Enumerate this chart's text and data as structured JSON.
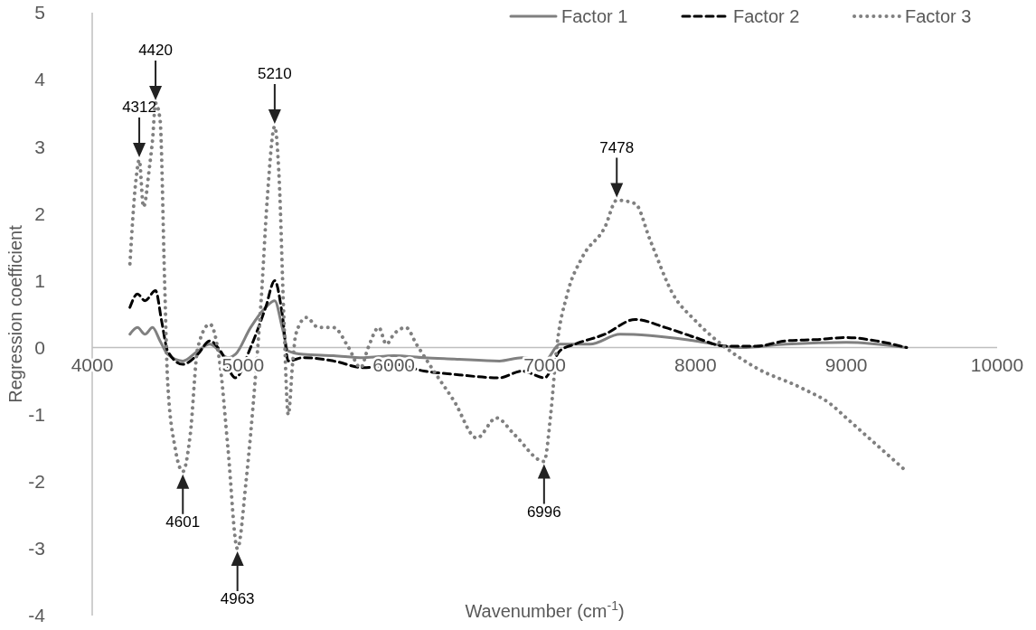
{
  "chart_data": {
    "type": "line",
    "xlabel": "Wavenumber (cm$^{-1}$)",
    "ylabel": "Regression coefficient",
    "xlim": [
      4000,
      10000
    ],
    "ylim": [
      -4,
      5
    ],
    "xticks": [
      4000,
      5000,
      6000,
      7000,
      8000,
      9000,
      10000
    ],
    "yticks": [
      -4,
      -3,
      -2,
      -1,
      0,
      1,
      2,
      3,
      4,
      5
    ],
    "grid": false,
    "legend": "top",
    "marker": "none",
    "series": [
      {
        "name": "Factor 1",
        "color": "#808080",
        "line_style": "solid",
        "x": [
          4250,
          4300,
          4350,
          4400,
          4450,
          4500,
          4600,
          4700,
          4780,
          4900,
          4950,
          5050,
          5150,
          5210,
          5260,
          5300,
          5400,
          5600,
          5800,
          6000,
          6200,
          6400,
          6700,
          6850,
          7000,
          7100,
          7300,
          7500,
          7700,
          8000,
          8300,
          8600,
          9000,
          9400
        ],
        "values": [
          0.2,
          0.3,
          0.2,
          0.3,
          0.1,
          -0.1,
          -0.2,
          -0.05,
          0.05,
          -0.15,
          -0.1,
          0.3,
          0.6,
          0.7,
          0.3,
          -0.05,
          -0.1,
          -0.12,
          -0.15,
          -0.12,
          -0.15,
          -0.17,
          -0.2,
          -0.15,
          -0.2,
          0.05,
          0.05,
          0.2,
          0.18,
          0.1,
          0,
          0.05,
          0.08,
          0
        ]
      },
      {
        "name": "Factor 2",
        "color": "#000000",
        "line_style": "dashed",
        "x": [
          4250,
          4300,
          4350,
          4420,
          4460,
          4500,
          4600,
          4700,
          4780,
          4850,
          4950,
          5050,
          5150,
          5210,
          5260,
          5300,
          5400,
          5600,
          5800,
          6000,
          6200,
          6400,
          6700,
          6850,
          7000,
          7100,
          7200,
          7400,
          7600,
          7800,
          8000,
          8200,
          8400,
          8600,
          8800,
          9000,
          9200,
          9400
        ],
        "values": [
          0.6,
          0.8,
          0.7,
          0.85,
          0.4,
          -0.05,
          -0.25,
          -0.1,
          0.1,
          -0.05,
          -0.45,
          0,
          0.6,
          1,
          0.5,
          -0.2,
          -0.15,
          -0.2,
          -0.3,
          -0.25,
          -0.35,
          -0.4,
          -0.45,
          -0.35,
          -0.45,
          -0.05,
          0.05,
          0.2,
          0.42,
          0.3,
          0.15,
          0.02,
          0.02,
          0.1,
          0.12,
          0.15,
          0.1,
          0
        ]
      },
      {
        "name": "Factor 3",
        "color": "#808080",
        "line_style": "dotted",
        "x": [
          4250,
          4290,
          4312,
          4340,
          4380,
          4400,
          4420,
          4450,
          4480,
          4500,
          4550,
          4601,
          4650,
          4700,
          4780,
          4850,
          4900,
          4963,
          5020,
          5080,
          5120,
          5160,
          5210,
          5240,
          5270,
          5300,
          5330,
          5350,
          5420,
          5500,
          5600,
          5700,
          5780,
          5830,
          5900,
          5950,
          6000,
          6080,
          6150,
          6250,
          6400,
          6550,
          6680,
          6800,
          6996,
          7040,
          7080,
          7150,
          7250,
          7400,
          7478,
          7600,
          7700,
          7850,
          8000,
          8200,
          8400,
          8700,
          8900,
          9000,
          9200,
          9400
        ],
        "values": [
          1.25,
          2.5,
          2.8,
          2.1,
          2.7,
          3.1,
          3.65,
          3.4,
          1,
          -0.5,
          -1.5,
          -1.85,
          -1.3,
          0,
          0.35,
          -0.3,
          -1.5,
          -3,
          -2,
          -0.5,
          0.7,
          2.2,
          3.3,
          2.5,
          0.5,
          -1,
          -0.2,
          0.2,
          0.45,
          0.3,
          0.3,
          0,
          -0.3,
          0,
          0.3,
          0.05,
          0.2,
          0.3,
          0.05,
          -0.3,
          -0.8,
          -1.35,
          -1.05,
          -1.3,
          -1.7,
          -1,
          0,
          0.8,
          1.35,
          1.8,
          2.2,
          2.15,
          1.6,
          0.8,
          0.4,
          0,
          -0.3,
          -0.6,
          -0.85,
          -1.05,
          -1.45,
          -1.85
        ]
      }
    ],
    "annotations": [
      {
        "text": "4312",
        "x": 4312,
        "y": 2.8
      },
      {
        "text": "4420",
        "x": 4420,
        "y": 3.65
      },
      {
        "text": "5210",
        "x": 5210,
        "y": 3.3
      },
      {
        "text": "7478",
        "x": 7478,
        "y": 2.2
      },
      {
        "text": "4601",
        "x": 4601,
        "y": -1.85
      },
      {
        "text": "4963",
        "x": 4963,
        "y": -3
      },
      {
        "text": "6996",
        "x": 6996,
        "y": -1.7
      }
    ]
  }
}
